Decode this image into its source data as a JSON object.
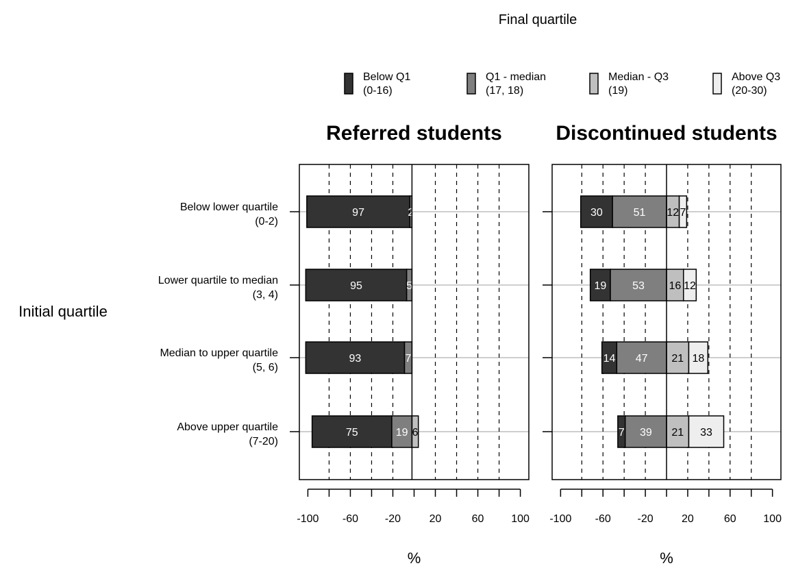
{
  "chart_data": {
    "type": "bar",
    "subtype": "diverging-stacked-horizontal",
    "legend_title": "Final quartile",
    "y_axis_title": "Initial quartile",
    "legend": [
      {
        "label": "Below Q1",
        "sub": "(0-16)",
        "color": "#333333"
      },
      {
        "label": "Q1 - median",
        "sub": "(17, 18)",
        "color": "#7f7f7f"
      },
      {
        "label": "Median - Q3",
        "sub": "(19)",
        "color": "#bfbfbf"
      },
      {
        "label": "Above Q3",
        "sub": "(20-30)",
        "color": "#eeeeee"
      }
    ],
    "categories": [
      {
        "label": "Below lower quartile",
        "sub": "(0-2)"
      },
      {
        "label": "Lower quartile to median",
        "sub": "(3, 4)"
      },
      {
        "label": "Median to upper quartile",
        "sub": "(5, 6)"
      },
      {
        "label": "Above upper quartile",
        "sub": "(7-20)"
      }
    ],
    "panels": [
      {
        "title": "Referred students",
        "xlabel": "%",
        "xlim": [
          -108,
          108
        ],
        "zero_offset": -2,
        "ticks": [
          -100,
          -60,
          -20,
          20,
          60,
          100
        ],
        "gridlines": [
          -80,
          -60,
          -40,
          -20,
          20,
          40,
          60,
          80
        ],
        "series": [
          {
            "name": "Below Q1",
            "values": [
              97,
              95,
              93,
              75
            ]
          },
          {
            "name": "Q1 - median",
            "values": [
              2,
              5,
              7,
              19
            ]
          },
          {
            "name": "Median - Q3",
            "values": [
              0,
              0,
              0,
              6
            ]
          },
          {
            "name": "Above Q3",
            "values": [
              0,
              0,
              0,
              0
            ]
          }
        ]
      },
      {
        "title": "Discontinued students",
        "xlabel": "%",
        "xlim": [
          -108,
          108
        ],
        "zero_offset": 0,
        "ticks": [
          -100,
          -60,
          -20,
          20,
          60,
          100
        ],
        "gridlines": [
          -80,
          -60,
          -40,
          -20,
          20,
          40,
          60,
          80
        ],
        "series": [
          {
            "name": "Below Q1",
            "values": [
              30,
              19,
              14,
              7
            ]
          },
          {
            "name": "Q1 - median",
            "values": [
              51,
              53,
              47,
              39
            ]
          },
          {
            "name": "Median - Q3",
            "values": [
              12,
              16,
              21,
              21
            ]
          },
          {
            "name": "Above Q3",
            "values": [
              7,
              12,
              18,
              33
            ]
          }
        ]
      }
    ]
  },
  "colors": {
    "label_on_dark": "#ffffff",
    "label_on_light": "#000000",
    "row_line": "#bdbdbd"
  }
}
